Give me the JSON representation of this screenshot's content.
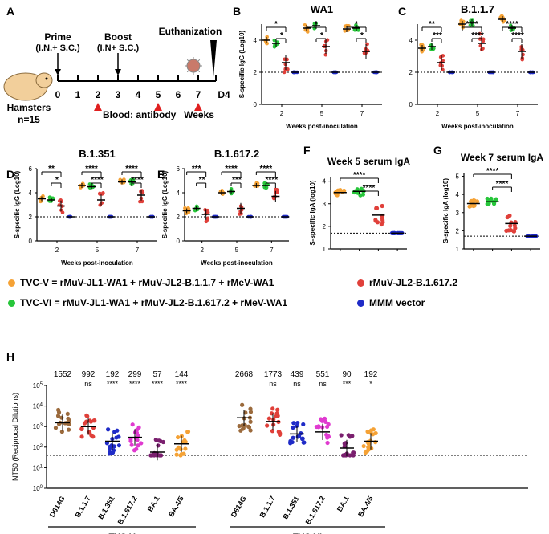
{
  "panels": {
    "A": "A",
    "B": "B",
    "C": "C",
    "D": "D",
    "E": "E",
    "F": "F",
    "G": "G",
    "H": "H"
  },
  "timeline": {
    "prime_1": "Prime",
    "prime_2": "(I.N.+ S.C.)",
    "boost_1": "Boost",
    "boost_2": "(I.N+ S.C.)",
    "euthanization": "Euthanization",
    "ticks": [
      "0",
      "1",
      "2",
      "3",
      "4",
      "5",
      "6",
      "7"
    ],
    "d4": "D4",
    "blood": "Blood: antibody",
    "weeks": "Weeks",
    "hamsters": "Hamsters",
    "n": "n=15"
  },
  "legend": {
    "tvcv": "TVC-V = rMuV-JL1-WA1 + rMuV-JL2-B.1.1.7 + rMeV-WA1",
    "tvcvi": "TVC-VI = rMuV-JL1-WA1 + rMuV-JL2-B.1.617.2 + rMeV-WA1",
    "jl2": "rMuV-JL2-B.1.617.2",
    "mmm": "MMM vector",
    "colors": {
      "tvcv": "#f5a235",
      "tvcvi": "#27c63a",
      "jl2": "#e0403a",
      "mmm": "#1f2bc7"
    }
  },
  "chart_data": [
    {
      "id": "B",
      "type": "scatter",
      "title": "WA1",
      "ylabel": "S-specific IgG (Log10)",
      "xlabel": "Weeks post-inoculation",
      "categories": [
        "2",
        "5",
        "7"
      ],
      "ylim": [
        0,
        5
      ],
      "yticks": [
        "0",
        "2",
        "4"
      ],
      "series": [
        {
          "name": "TVC-V",
          "values": [
            4.0,
            4.75,
            4.7
          ]
        },
        {
          "name": "TVC-VI",
          "values": [
            3.8,
            4.9,
            4.75
          ]
        },
        {
          "name": "rMuV-JL2-B.1.617.2",
          "values": [
            2.6,
            3.6,
            3.3
          ]
        },
        {
          "name": "MMM vector",
          "values": [
            2.0,
            2.0,
            2.0
          ]
        }
      ],
      "brackets": [
        [
          "*",
          "*"
        ],
        [
          "*",
          "*"
        ],
        [
          "*",
          "*"
        ]
      ]
    },
    {
      "id": "C",
      "type": "scatter",
      "title": "B.1.1.7",
      "ylabel": "",
      "xlabel": "Weeks post-inoculation",
      "categories": [
        "2",
        "5",
        "7"
      ],
      "ylim": [
        0,
        5
      ],
      "yticks": [
        "0",
        "2",
        "4"
      ],
      "series": [
        {
          "name": "TVC-V",
          "values": [
            3.5,
            5.0,
            5.3
          ]
        },
        {
          "name": "TVC-VI",
          "values": [
            3.6,
            5.1,
            4.75
          ]
        },
        {
          "name": "rMuV-JL2-B.1.617.2",
          "values": [
            2.6,
            3.8,
            3.3
          ]
        },
        {
          "name": "MMM vector",
          "values": [
            2.0,
            2.0,
            2.0
          ]
        }
      ],
      "brackets": [
        [
          "**",
          "***"
        ],
        [
          "****",
          "****"
        ],
        [
          "****",
          "****"
        ]
      ]
    },
    {
      "id": "D",
      "type": "scatter",
      "title": "B.1.351",
      "ylabel": "S-specific IgG (Log10)",
      "xlabel": "Weeks post-inoculation",
      "categories": [
        "2",
        "5",
        "7"
      ],
      "ylim": [
        0,
        5
      ],
      "yticks": [
        "0",
        "2",
        "4",
        "6"
      ],
      "series": [
        {
          "name": "TVC-V",
          "values": [
            3.5,
            4.6,
            4.9
          ]
        },
        {
          "name": "TVC-VI",
          "values": [
            3.4,
            4.5,
            4.9
          ]
        },
        {
          "name": "rMuV-JL2-B.1.617.2",
          "values": [
            2.9,
            3.4,
            3.8
          ]
        },
        {
          "name": "MMM vector",
          "values": [
            2.0,
            2.0,
            2.0
          ]
        }
      ],
      "brackets": [
        [
          "**",
          "*"
        ],
        [
          "****",
          "****"
        ],
        [
          "****",
          "****"
        ]
      ]
    },
    {
      "id": "E",
      "type": "scatter",
      "title": "B.1.617.2",
      "ylabel": "S-specific IgG (Log10)",
      "xlabel": "Weeks post-inoculation",
      "categories": [
        "2",
        "5",
        "7"
      ],
      "ylim": [
        0,
        5
      ],
      "yticks": [
        "0",
        "2",
        "4",
        "6"
      ],
      "series": [
        {
          "name": "TVC-V",
          "values": [
            2.5,
            4.0,
            4.6
          ]
        },
        {
          "name": "TVC-VI",
          "values": [
            2.7,
            4.1,
            4.6
          ]
        },
        {
          "name": "rMuV-JL2-B.1.617.2",
          "values": [
            2.2,
            2.7,
            3.7
          ]
        },
        {
          "name": "MMM vector",
          "values": [
            2.0,
            2.0,
            2.0
          ]
        }
      ],
      "brackets": [
        [
          "***",
          "**"
        ],
        [
          "****",
          "***"
        ],
        [
          "****",
          "****"
        ]
      ]
    },
    {
      "id": "F",
      "type": "scatter",
      "title": "Week 5 serum IgA",
      "ylabel": "S-specific IgA (log10)",
      "xlabel": "",
      "categories": [
        "TVC-V",
        "TVC-VI",
        "rMuV-JL2-B.1.617.2",
        "MMM vector"
      ],
      "ylim": [
        1,
        4.2
      ],
      "yticks": [
        "1",
        "2",
        "3",
        "4"
      ],
      "limit": 1.7,
      "values": [
        3.5,
        3.55,
        2.5,
        1.7
      ],
      "brackets": [
        "****",
        "****"
      ]
    },
    {
      "id": "G",
      "type": "scatter",
      "title": "Week 7 serum IgA",
      "ylabel": "S-specific IgA (log10)",
      "xlabel": "",
      "categories": [
        "TVC-V",
        "TVC-VI",
        "rMuV-JL2-B.1.617.2",
        "MMM vector"
      ],
      "ylim": [
        1,
        5.2
      ],
      "yticks": [
        "1",
        "2",
        "3",
        "4",
        "5"
      ],
      "limit": 1.7,
      "values": [
        3.5,
        3.6,
        2.4,
        1.7
      ],
      "brackets": [
        "****",
        "****"
      ]
    },
    {
      "id": "H",
      "type": "scatter",
      "ylabel": "NT50 (Reciprocal Dilutions)",
      "ylim_log10": [
        0,
        5
      ],
      "yticks": [
        "10^0",
        "10^1",
        "10^2",
        "10^3",
        "10^4",
        "10^5"
      ],
      "limit": 40,
      "groups": [
        {
          "name": "TVC-V",
          "categories": [
            "D614G",
            "B.1.1.7",
            "B.1.351",
            "B.1.617.2",
            "BA.1",
            "BA.4/5"
          ],
          "gmt": [
            1552,
            992,
            192,
            299,
            57,
            144
          ],
          "gmt_labels": [
            "1552",
            "992",
            "192",
            "299",
            "57",
            "144"
          ],
          "significance": [
            "",
            "ns",
            "****",
            "****",
            "****",
            "****"
          ]
        },
        {
          "name": "TVC-VI",
          "categories": [
            "D614G",
            "B.1.1.7",
            "B.1.351",
            "B.1.617.2",
            "BA.1",
            "BA.4/5"
          ],
          "gmt": [
            2668,
            1773,
            439,
            551,
            90,
            192
          ],
          "gmt_labels": [
            "2668",
            "1773",
            "439",
            "551",
            "90",
            "192"
          ],
          "significance": [
            "",
            "ns",
            "ns",
            "ns",
            "***",
            "*"
          ]
        }
      ],
      "colors": [
        "#9b6a3c",
        "#e0403a",
        "#1f2bc7",
        "#e03ad0",
        "#7a1f6e",
        "#f5a235"
      ]
    }
  ]
}
